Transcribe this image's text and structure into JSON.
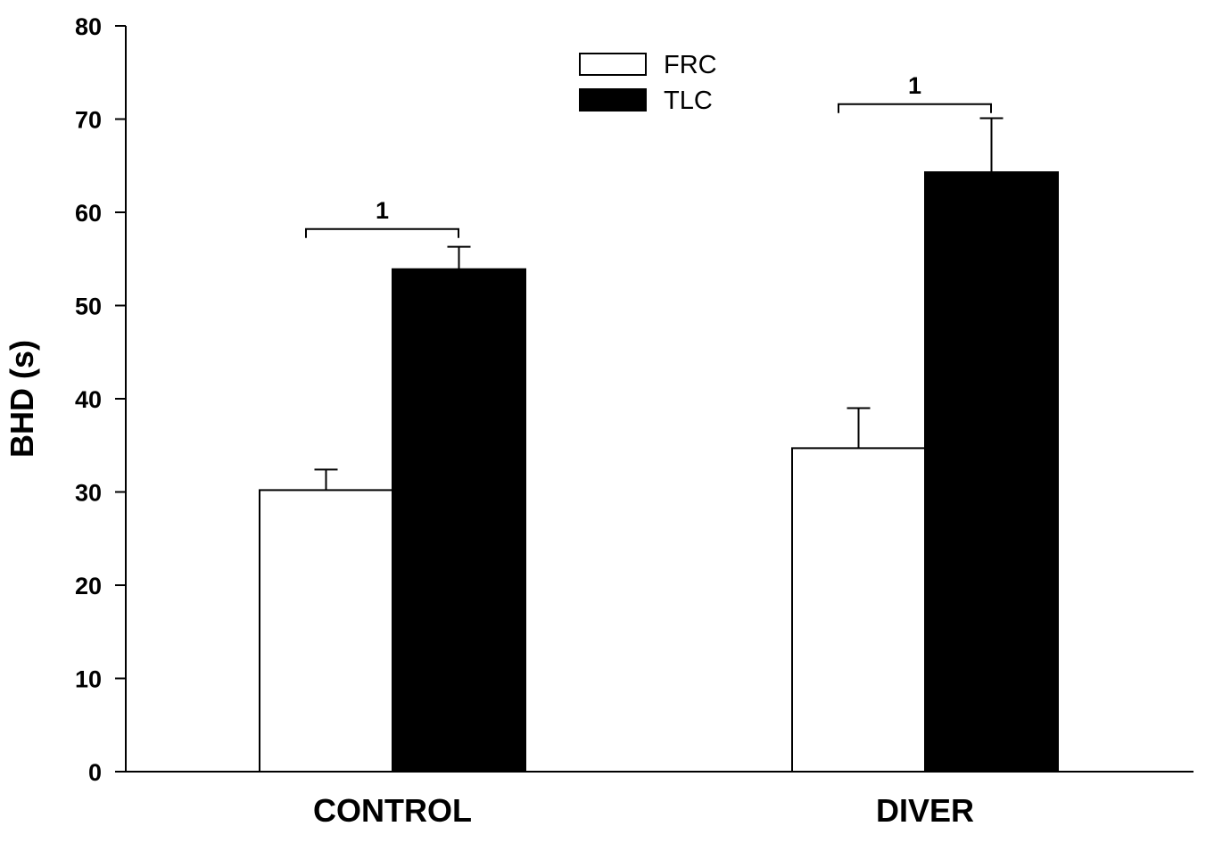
{
  "chart_data": {
    "type": "bar",
    "title": "",
    "xlabel": "",
    "ylabel": "BHD (s)",
    "ylim": [
      0,
      80
    ],
    "yticks": [
      0,
      10,
      20,
      30,
      40,
      50,
      60,
      70,
      80
    ],
    "categories": [
      "CONTROL",
      "DIVER"
    ],
    "series": [
      {
        "name": "FRC",
        "values": [
          30.2,
          34.7
        ],
        "errors": [
          2.2,
          4.3
        ],
        "fill": "#ffffff"
      },
      {
        "name": "TLC",
        "values": [
          53.9,
          64.3
        ],
        "errors": [
          2.4,
          5.8
        ],
        "fill": "#000000"
      }
    ],
    "significance": [
      {
        "category": "CONTROL",
        "label": "1",
        "y": 58.2
      },
      {
        "category": "DIVER",
        "label": "1",
        "y": 71.6
      }
    ],
    "legend_position": "top-center",
    "grid": false
  }
}
